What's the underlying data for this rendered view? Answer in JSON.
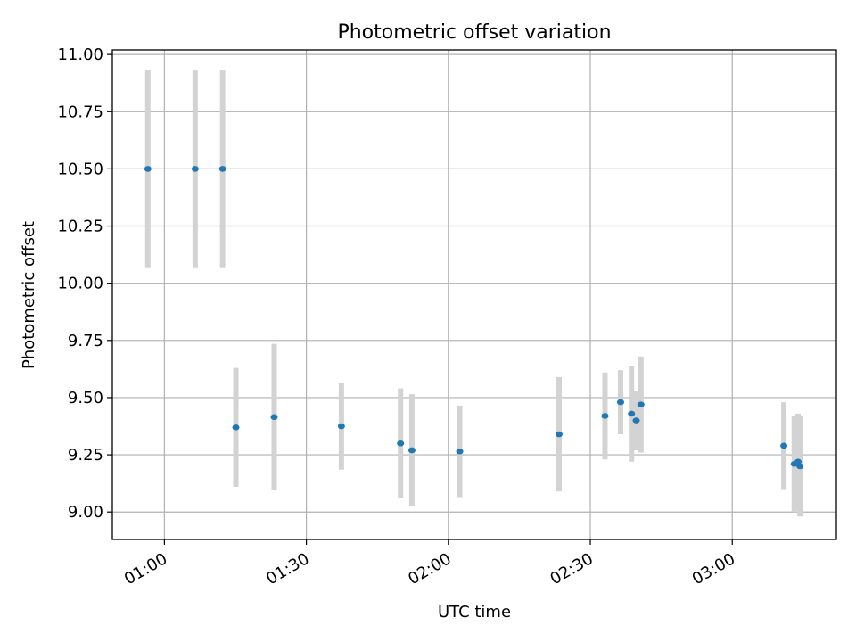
{
  "chart_data": {
    "type": "scatter",
    "title": "Photometric offset variation",
    "xlabel": "UTC time",
    "ylabel": "Photometric offset",
    "x_axis": {
      "kind": "time",
      "lim": [
        "00:49",
        "03:22"
      ],
      "ticks": [
        "01:00",
        "01:30",
        "02:00",
        "02:30",
        "03:00"
      ]
    },
    "y_axis": {
      "lim": [
        8.88,
        11.02
      ],
      "ticks": [
        "9.00",
        "9.25",
        "9.50",
        "9.75",
        "10.00",
        "10.25",
        "10.50",
        "10.75",
        "11.00"
      ]
    },
    "grid": true,
    "colors": {
      "point": "#1f77b4",
      "errorbar": "#d3d3d3",
      "grid": "#b0b0b0"
    },
    "series": [
      {
        "points": [
          {
            "x": "00:56.5",
            "y": 10.5,
            "err": 0.43
          },
          {
            "x": "01:06.5",
            "y": 10.5,
            "err": 0.43
          },
          {
            "x": "01:12.3",
            "y": 10.5,
            "err": 0.43
          },
          {
            "x": "01:15.1",
            "y": 9.37,
            "err": 0.26
          },
          {
            "x": "01:23.2",
            "y": 9.415,
            "err": 0.32
          },
          {
            "x": "01:37.4",
            "y": 9.375,
            "err": 0.19
          },
          {
            "x": "01:49.9",
            "y": 9.3,
            "err": 0.24
          },
          {
            "x": "01:52.3",
            "y": 9.27,
            "err": 0.245
          },
          {
            "x": "02:02.4",
            "y": 9.265,
            "err": 0.2
          },
          {
            "x": "02:23.4",
            "y": 9.34,
            "err": 0.25
          },
          {
            "x": "02:33.1",
            "y": 9.42,
            "err": 0.19
          },
          {
            "x": "02:36.4",
            "y": 9.48,
            "err": 0.14
          },
          {
            "x": "02:38.7",
            "y": 9.43,
            "err": 0.21
          },
          {
            "x": "02:39.7",
            "y": 9.4,
            "err": 0.13
          },
          {
            "x": "02:40.7",
            "y": 9.47,
            "err": 0.21
          },
          {
            "x": "03:10.9",
            "y": 9.29,
            "err": 0.19
          },
          {
            "x": "03:13.1",
            "y": 9.21,
            "err": 0.21
          },
          {
            "x": "03:13.9",
            "y": 9.22,
            "err": 0.21
          },
          {
            "x": "03:14.3",
            "y": 9.2,
            "err": 0.22
          }
        ]
      }
    ]
  }
}
